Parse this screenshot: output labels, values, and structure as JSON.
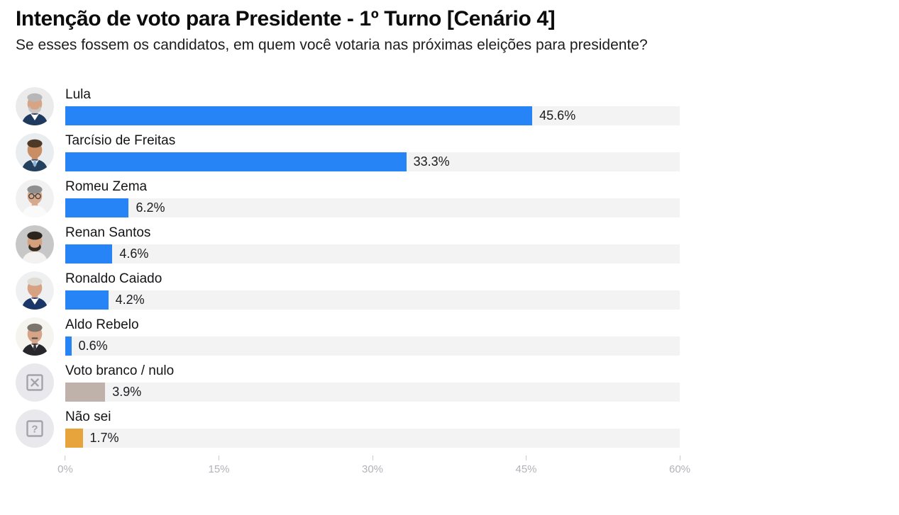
{
  "title": "Intenção de voto para Presidente - 1º Turno [Cenário 4]",
  "subtitle": "Se esses fossem os candidatos, em quem você votaria nas próximas eleições para presidente?",
  "chart_data": {
    "type": "bar",
    "orientation": "horizontal",
    "title": "Intenção de voto para Presidente - 1º Turno [Cenário 4]",
    "subtitle": "Se esses fossem os candidatos, em quem você votaria nas próximas eleições para presidente?",
    "categories": [
      "Lula",
      "Tarcísio de Freitas",
      "Romeu Zema",
      "Renan Santos",
      "Ronaldo Caiado",
      "Aldo Rebelo",
      "Voto branco / nulo",
      "Não sei"
    ],
    "values": [
      45.6,
      33.3,
      6.2,
      4.6,
      4.2,
      0.6,
      3.9,
      1.7
    ],
    "value_labels": [
      "45.6%",
      "33.3%",
      "6.2%",
      "4.6%",
      "4.2%",
      "0.6%",
      "3.9%",
      "1.7%"
    ],
    "bar_colors": [
      "#2684f7",
      "#2684f7",
      "#2684f7",
      "#2684f7",
      "#2684f7",
      "#2684f7",
      "#bfb2ab",
      "#e8a43c"
    ],
    "xlabel": "",
    "ylabel": "",
    "xlim": [
      0,
      60
    ],
    "x_tick_values": [
      0,
      15,
      30,
      45,
      60
    ],
    "x_tick_labels": [
      "0%",
      "15%",
      "30%",
      "45%",
      "60%"
    ],
    "grid": false,
    "legend": false,
    "track_color": "#f3f3f4"
  },
  "avatars": [
    {
      "name": "avatar-lula-photo",
      "type": "photo",
      "bg": "#ebebeb",
      "skin": "#d7a585",
      "hair": "#b7b7b7",
      "beard": "#c6c6c6",
      "suit": "#1e3a5e",
      "shirt": "#ffffff",
      "glasses": false,
      "mustache": null,
      "tie": null
    },
    {
      "name": "avatar-tarcisio-photo",
      "type": "photo",
      "bg": "#e9edf0",
      "skin": "#c98e63",
      "hair": "#4e3826",
      "beard": null,
      "suit": "#24405f",
      "shirt": "#dce8f2",
      "glasses": false,
      "mustache": null,
      "tie": "#8fb3d9"
    },
    {
      "name": "avatar-zema-photo",
      "type": "photo",
      "bg": "#f1f1f1",
      "skin": "#d8a98a",
      "hair": "#8f8f8f",
      "beard": null,
      "suit": "#fafafa",
      "shirt": "#fafafa",
      "glasses": true,
      "mustache": null,
      "tie": null
    },
    {
      "name": "avatar-renan-photo",
      "type": "photo",
      "bg": "#c7c7c7",
      "skin": "#d5a07c",
      "hair": "#2c241d",
      "beard": "#362b21",
      "suit": "#f3f2f0",
      "shirt": "#f3f2f0",
      "glasses": false,
      "mustache": null,
      "tie": null
    },
    {
      "name": "avatar-caiado-photo",
      "type": "photo",
      "bg": "#eff0f1",
      "skin": "#d7a284",
      "hair": "#dedbd5",
      "beard": null,
      "suit": "#1b3769",
      "shirt": "#ffffff",
      "glasses": false,
      "mustache": null,
      "tie": null
    },
    {
      "name": "avatar-aldo-photo",
      "type": "photo",
      "bg": "#f6f4ef",
      "skin": "#d6a486",
      "hair": "#7a746c",
      "beard": null,
      "suit": "#27272c",
      "shirt": "#ffffff",
      "glasses": false,
      "mustache": "#55504a",
      "tie": "#3a3a40"
    },
    {
      "name": "blank-null-vote-icon",
      "type": "x-square",
      "bg": "#e9e9ed",
      "stroke": "#a3a3aa"
    },
    {
      "name": "dont-know-icon",
      "type": "question-square",
      "bg": "#e9e9ed",
      "stroke": "#a3a3aa"
    }
  ],
  "colors": {
    "bar_blue": "#2684f7",
    "bar_taupe": "#bfb2ab",
    "bar_amber": "#e8a43c",
    "track": "#f3f3f4",
    "title_text": "#0c0c0d",
    "label_text": "#141417",
    "value_text": "#1b1b1e",
    "axis_label": "#b2b2b9",
    "tick_line": "#c9c9cf",
    "background": "#ffffff"
  }
}
